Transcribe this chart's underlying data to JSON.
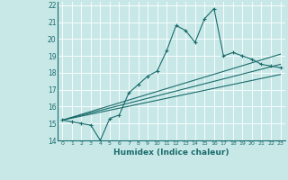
{
  "xlabel": "Humidex (Indice chaleur)",
  "bg_color": "#c8e8e8",
  "grid_color": "#a0c8c8",
  "line_color": "#1a6b6b",
  "xlim": [
    -0.5,
    23.5
  ],
  "ylim": [
    14,
    22.2
  ],
  "xticks": [
    0,
    1,
    2,
    3,
    4,
    5,
    6,
    7,
    8,
    9,
    10,
    11,
    12,
    13,
    14,
    15,
    16,
    17,
    18,
    19,
    20,
    21,
    22,
    23
  ],
  "yticks": [
    14,
    15,
    16,
    17,
    18,
    19,
    20,
    21,
    22
  ],
  "main_x": [
    0,
    1,
    2,
    3,
    4,
    5,
    6,
    7,
    8,
    9,
    10,
    11,
    12,
    13,
    14,
    15,
    16,
    17,
    18,
    19,
    20,
    21,
    22,
    23
  ],
  "main_y": [
    15.2,
    15.1,
    15.0,
    14.9,
    14.0,
    15.3,
    15.5,
    16.8,
    17.3,
    17.8,
    18.1,
    19.3,
    20.8,
    20.5,
    19.8,
    21.2,
    21.8,
    19.0,
    19.2,
    19.0,
    18.8,
    18.5,
    18.4,
    18.3
  ],
  "line1_x": [
    0,
    23
  ],
  "line1_y": [
    15.2,
    18.5
  ],
  "line2_x": [
    0,
    23
  ],
  "line2_y": [
    15.2,
    19.1
  ],
  "line3_x": [
    0,
    23
  ],
  "line3_y": [
    15.2,
    17.9
  ]
}
